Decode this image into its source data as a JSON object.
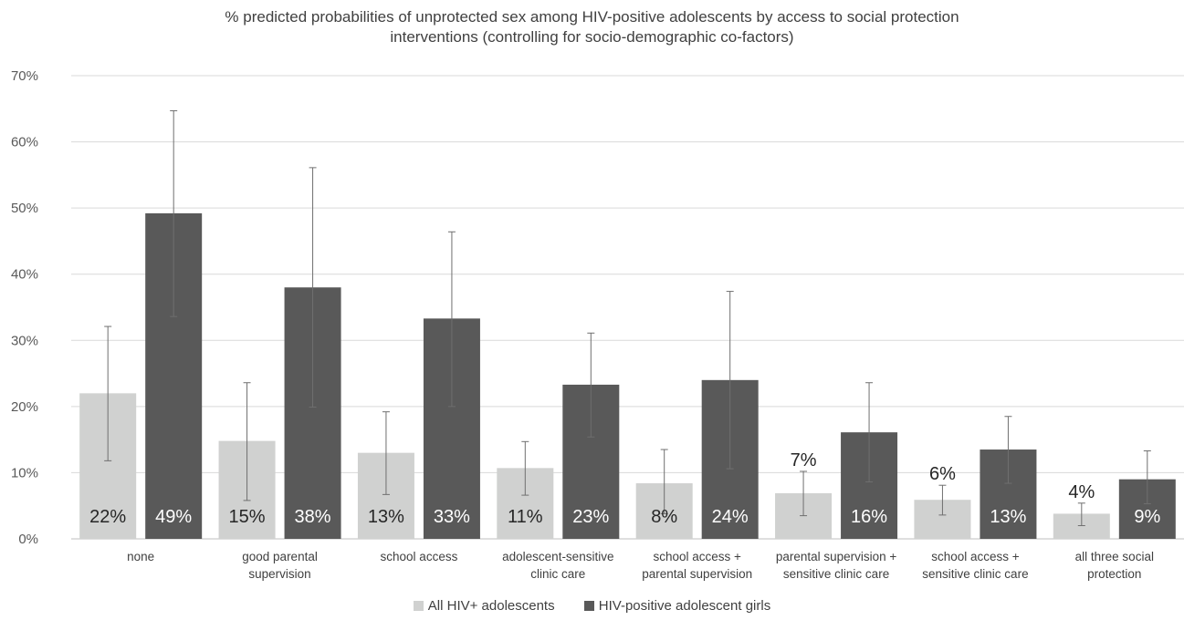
{
  "chart_data": {
    "type": "bar",
    "title_line1": "% predicted probabilities of unprotected sex among HIV-positive adolescents by access to social protection",
    "title_line2": "interventions (controlling for socio-demographic co-factors)",
    "categories": [
      [
        "none"
      ],
      [
        "good parental",
        "supervision"
      ],
      [
        "school access"
      ],
      [
        "adolescent-sensitive",
        "clinic care"
      ],
      [
        "school access +",
        "parental supervision"
      ],
      [
        "parental supervision +",
        "sensitive clinic care"
      ],
      [
        "school access +",
        "sensitive clinic care"
      ],
      [
        "all three social",
        "protection"
      ]
    ],
    "series": [
      {
        "name": "All HIV+ adolescents",
        "color": "#d0d1d0",
        "values": [
          22,
          14.8,
          13,
          10.7,
          8.4,
          6.9,
          5.9,
          3.8
        ],
        "labels": [
          "22%",
          "15%",
          "13%",
          "11%",
          "8%",
          "7%",
          "6%",
          "4%"
        ],
        "error_low": [
          11.8,
          5.8,
          6.7,
          6.6,
          3.8,
          3.5,
          3.6,
          2.0
        ],
        "error_high": [
          32.1,
          23.6,
          19.2,
          14.7,
          13.5,
          10.2,
          8.1,
          5.4
        ]
      },
      {
        "name": "HIV-positive adolescent girls",
        "color": "#595959",
        "values": [
          49.2,
          38,
          33.3,
          23.3,
          24,
          16.1,
          13.5,
          9
        ],
        "labels": [
          "49%",
          "38%",
          "33%",
          "23%",
          "24%",
          "16%",
          "13%",
          "9%"
        ],
        "error_low": [
          33.6,
          19.9,
          20.0,
          15.4,
          10.6,
          8.6,
          8.4,
          5.3
        ],
        "error_high": [
          64.7,
          56.1,
          46.4,
          31.1,
          37.4,
          23.6,
          18.5,
          13.3
        ]
      }
    ],
    "y_ticks": [
      "0%",
      "10%",
      "20%",
      "30%",
      "40%",
      "50%",
      "60%",
      "70%"
    ],
    "ylim": [
      0,
      70
    ],
    "grid": true,
    "legend_position": "bottom"
  }
}
